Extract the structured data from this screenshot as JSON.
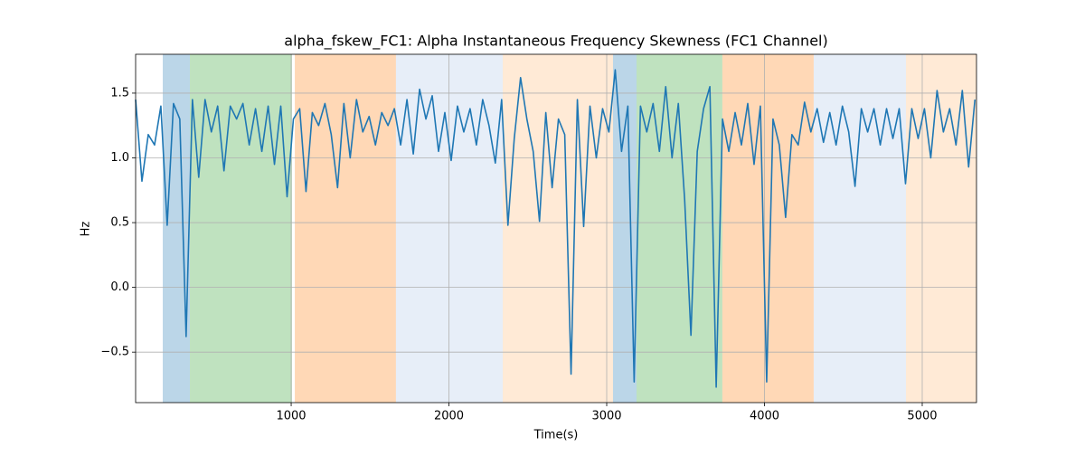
{
  "chart_data": {
    "type": "line",
    "title": "alpha_fskew_FC1: Alpha Instantaneous Frequency Skewness (FC1 Channel)",
    "xlabel": "Time(s)",
    "ylabel": "Hz",
    "xlim": [
      14,
      5344
    ],
    "ylim": [
      -0.89,
      1.8
    ],
    "xticks": [
      1000,
      2000,
      3000,
      4000,
      5000
    ],
    "yticks": [
      {
        "value": -0.5,
        "label": "−0.5"
      },
      {
        "value": 0,
        "label": "0.0"
      },
      0.5,
      {
        "value": 1,
        "label": "1.0"
      },
      1.5
    ],
    "grid": true,
    "spans": [
      {
        "start": 186,
        "end": 358,
        "color": "#1f77b4"
      },
      {
        "start": 358,
        "end": 1005,
        "color": "#2ca02c"
      },
      {
        "start": 1023,
        "end": 1664,
        "color": "#ff7f0e"
      },
      {
        "start": 1664,
        "end": 2341,
        "color": "#aec7e8"
      },
      {
        "start": 2341,
        "end": 3040,
        "color": "#ffbb78"
      },
      {
        "start": 3040,
        "end": 3189,
        "color": "#1f77b4"
      },
      {
        "start": 3189,
        "end": 3733,
        "color": "#2ca02c"
      },
      {
        "start": 3733,
        "end": 4312,
        "color": "#ff7f0e"
      },
      {
        "start": 4312,
        "end": 4897,
        "color": "#aec7e8"
      },
      {
        "start": 4897,
        "end": 5344,
        "color": "#ffbb78"
      }
    ],
    "x": [
      14,
      54,
      94,
      134,
      174,
      214,
      254,
      294,
      334,
      374,
      414,
      454,
      494,
      534,
      574,
      614,
      654,
      694,
      734,
      774,
      814,
      854,
      894,
      934,
      974,
      1014,
      1054,
      1094,
      1134,
      1174,
      1214,
      1254,
      1294,
      1334,
      1374,
      1414,
      1454,
      1494,
      1534,
      1574,
      1614,
      1654,
      1694,
      1734,
      1774,
      1814,
      1854,
      1894,
      1934,
      1974,
      2014,
      2054,
      2094,
      2134,
      2174,
      2214,
      2254,
      2294,
      2334,
      2374,
      2414,
      2454,
      2494,
      2534,
      2574,
      2614,
      2654,
      2694,
      2734,
      2774,
      2814,
      2854,
      2894,
      2934,
      2974,
      3014,
      3054,
      3094,
      3134,
      3174,
      3214,
      3254,
      3294,
      3334,
      3374,
      3414,
      3454,
      3494,
      3534,
      3574,
      3614,
      3654,
      3694,
      3734,
      3774,
      3814,
      3854,
      3894,
      3934,
      3974,
      4014,
      4054,
      4094,
      4134,
      4174,
      4214,
      4254,
      4294,
      4334,
      4374,
      4414,
      4454,
      4494,
      4534,
      4574,
      4614,
      4654,
      4694,
      4734,
      4774,
      4814,
      4854,
      4894,
      4934,
      4974,
      5014,
      5054,
      5094,
      5134,
      5174,
      5214,
      5254,
      5294,
      5334
    ],
    "series": [
      {
        "color": "#1f77b4",
        "values": [
          1.45,
          0.82,
          1.18,
          1.1,
          1.4,
          0.48,
          1.42,
          1.3,
          -0.38,
          1.45,
          0.85,
          1.45,
          1.2,
          1.4,
          0.9,
          1.4,
          1.3,
          1.42,
          1.1,
          1.38,
          1.05,
          1.4,
          0.95,
          1.4,
          0.7,
          1.3,
          1.38,
          0.74,
          1.35,
          1.25,
          1.42,
          1.18,
          0.77,
          1.42,
          1.0,
          1.45,
          1.2,
          1.32,
          1.1,
          1.35,
          1.25,
          1.38,
          1.1,
          1.45,
          1.03,
          1.53,
          1.3,
          1.48,
          1.05,
          1.35,
          0.98,
          1.4,
          1.2,
          1.38,
          1.1,
          1.45,
          1.25,
          0.96,
          1.45,
          0.48,
          1.15,
          1.62,
          1.3,
          1.05,
          0.51,
          1.35,
          0.77,
          1.3,
          1.18,
          -0.67,
          1.45,
          0.47,
          1.4,
          1.0,
          1.38,
          1.2,
          1.68,
          1.05,
          1.4,
          -0.73,
          1.4,
          1.2,
          1.42,
          1.05,
          1.55,
          1.0,
          1.42,
          0.68,
          -0.37,
          1.05,
          1.38,
          1.55,
          -0.77,
          1.3,
          1.05,
          1.35,
          1.1,
          1.42,
          0.95,
          1.4,
          -0.73,
          1.3,
          1.1,
          0.54,
          1.18,
          1.1,
          1.43,
          1.2,
          1.38,
          1.12,
          1.35,
          1.1,
          1.4,
          1.2,
          0.78,
          1.38,
          1.2,
          1.38,
          1.1,
          1.38,
          1.15,
          1.38,
          0.8,
          1.38,
          1.15,
          1.38,
          1.0,
          1.52,
          1.2,
          1.38,
          1.1,
          1.52,
          0.93,
          1.45
        ]
      }
    ]
  }
}
